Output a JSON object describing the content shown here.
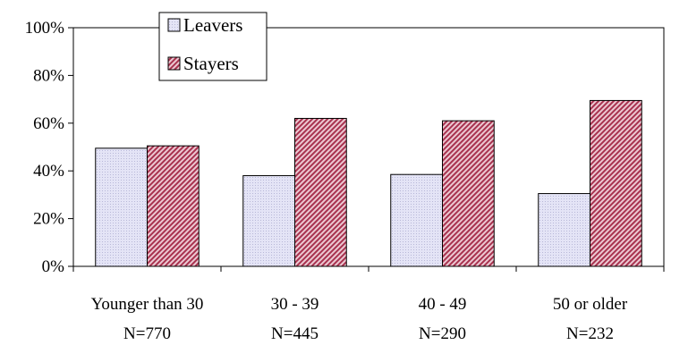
{
  "chart_data": {
    "type": "bar",
    "categories": [
      "Younger than 30",
      "30 - 39",
      "40 - 49",
      "50 or older"
    ],
    "category_counts": [
      "N=770",
      "N=445",
      "N=290",
      "N=232"
    ],
    "series": [
      {
        "name": "Leavers",
        "values": [
          49.5,
          38,
          38.5,
          30.5
        ],
        "color": "#dcdcf0"
      },
      {
        "name": "Stayers",
        "values": [
          50.5,
          62,
          61,
          69.5
        ],
        "color": "#c4607a"
      }
    ],
    "ylim": [
      0,
      100
    ],
    "yticks": [
      0,
      20,
      40,
      60,
      80,
      100
    ],
    "ytick_labels": [
      "0%",
      "20%",
      "40%",
      "60%",
      "80%",
      "100%"
    ],
    "legend_position": "top-left",
    "grid": false
  }
}
